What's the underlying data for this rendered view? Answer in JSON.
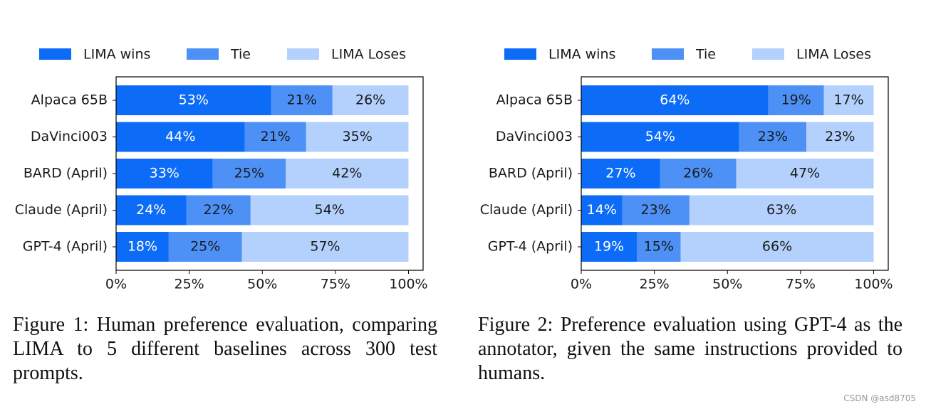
{
  "chart_data": [
    {
      "type": "stacked-barh",
      "categories": [
        "Alpaca 65B",
        "DaVinci003",
        "BARD (April)",
        "Claude (April)",
        "GPT-4 (April)"
      ],
      "series": [
        {
          "name": "LIMA wins",
          "color": "#0d6cf7",
          "label_color": "#ffffff",
          "values": [
            53,
            44,
            33,
            24,
            18
          ],
          "value_labels": [
            "53%",
            "44%",
            "33%",
            "24%",
            "18%"
          ]
        },
        {
          "name": "Tie",
          "color": "#4d91f7",
          "label_color": "#1a1a1a",
          "values": [
            21,
            21,
            25,
            22,
            25
          ],
          "value_labels": [
            "21%",
            "21%",
            "25%",
            "22%",
            "25%"
          ]
        },
        {
          "name": "LIMA Loses",
          "color": "#b3d1fc",
          "label_color": "#1a1a1a",
          "values": [
            26,
            35,
            42,
            54,
            57
          ],
          "value_labels": [
            "26%",
            "35%",
            "42%",
            "54%",
            "57%"
          ]
        }
      ],
      "xlim": [
        0,
        105
      ],
      "xticks": [
        {
          "value": 0,
          "label": "0%"
        },
        {
          "value": 25,
          "label": "25%"
        },
        {
          "value": 50,
          "label": "50%"
        },
        {
          "value": 75,
          "label": "75%"
        },
        {
          "value": 100,
          "label": "100%"
        }
      ],
      "caption": "Figure 1: Human preference evaluation, comparing LIMA to 5 different baselines across 300 test prompts."
    },
    {
      "type": "stacked-barh",
      "categories": [
        "Alpaca 65B",
        "DaVinci003",
        "BARD (April)",
        "Claude (April)",
        "GPT-4 (April)"
      ],
      "series": [
        {
          "name": "LIMA wins",
          "color": "#0d6cf7",
          "label_color": "#ffffff",
          "values": [
            64,
            54,
            27,
            14,
            19
          ],
          "value_labels": [
            "64%",
            "54%",
            "27%",
            "14%",
            "19%"
          ]
        },
        {
          "name": "Tie",
          "color": "#4d91f7",
          "label_color": "#1a1a1a",
          "values": [
            19,
            23,
            26,
            23,
            15
          ],
          "value_labels": [
            "19%",
            "23%",
            "26%",
            "23%",
            "15%"
          ]
        },
        {
          "name": "LIMA Loses",
          "color": "#b3d1fc",
          "label_color": "#1a1a1a",
          "values": [
            17,
            23,
            47,
            63,
            66
          ],
          "value_labels": [
            "17%",
            "23%",
            "47%",
            "63%",
            "66%"
          ]
        }
      ],
      "xlim": [
        0,
        105
      ],
      "xticks": [
        {
          "value": 0,
          "label": "0%"
        },
        {
          "value": 25,
          "label": "25%"
        },
        {
          "value": 50,
          "label": "50%"
        },
        {
          "value": 75,
          "label": "75%"
        },
        {
          "value": 100,
          "label": "100%"
        }
      ],
      "caption": "Figure 2: Preference evaluation using GPT-4 as the annotator, given the same instructions provided to humans."
    }
  ],
  "watermark": "CSDN @asd8705"
}
